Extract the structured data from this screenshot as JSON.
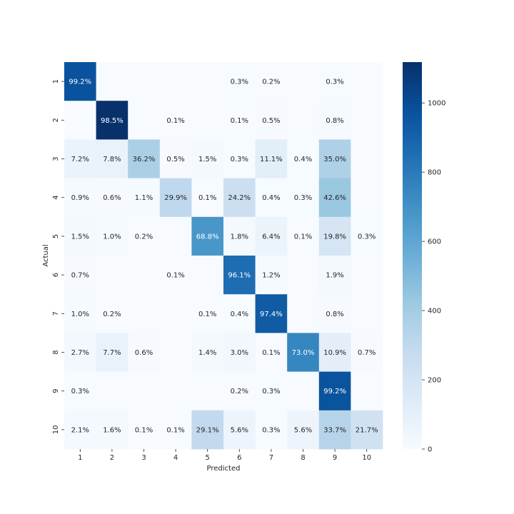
{
  "chart_data": {
    "type": "heatmap",
    "title": "",
    "xlabel": "Predicted",
    "ylabel": "Actual",
    "x_categories": [
      "1",
      "2",
      "3",
      "4",
      "5",
      "6",
      "7",
      "8",
      "9",
      "10"
    ],
    "y_categories": [
      "1",
      "2",
      "3",
      "4",
      "5",
      "6",
      "7",
      "8",
      "9",
      "10"
    ],
    "cells": [
      [
        "99.2%",
        "",
        "",
        "",
        "",
        "0.3%",
        "0.2%",
        "",
        "0.3%",
        ""
      ],
      [
        "",
        "98.5%",
        "",
        "0.1%",
        "",
        "0.1%",
        "0.5%",
        "",
        "0.8%",
        ""
      ],
      [
        "7.2%",
        "7.8%",
        "36.2%",
        "0.5%",
        "1.5%",
        "0.3%",
        "11.1%",
        "0.4%",
        "35.0%",
        ""
      ],
      [
        "0.9%",
        "0.6%",
        "1.1%",
        "29.9%",
        "0.1%",
        "24.2%",
        "0.4%",
        "0.3%",
        "42.6%",
        ""
      ],
      [
        "1.5%",
        "1.0%",
        "0.2%",
        "",
        "68.8%",
        "1.8%",
        "6.4%",
        "0.1%",
        "19.8%",
        "0.3%"
      ],
      [
        "0.7%",
        "",
        "",
        "0.1%",
        "",
        "96.1%",
        "1.2%",
        "",
        "1.9%",
        ""
      ],
      [
        "1.0%",
        "0.2%",
        "",
        "",
        "0.1%",
        "0.4%",
        "97.4%",
        "",
        "0.8%",
        ""
      ],
      [
        "2.7%",
        "7.7%",
        "0.6%",
        "",
        "1.4%",
        "3.0%",
        "0.1%",
        "73.0%",
        "10.9%",
        "0.7%"
      ],
      [
        "0.3%",
        "",
        "",
        "",
        "",
        "0.2%",
        "0.3%",
        "",
        "99.2%",
        ""
      ],
      [
        "2.1%",
        "1.6%",
        "0.1%",
        "0.1%",
        "29.1%",
        "5.6%",
        "0.3%",
        "5.6%",
        "33.7%",
        "21.7%"
      ]
    ],
    "counts": [
      [
        972,
        0,
        0,
        0,
        0,
        3,
        2,
        0,
        3,
        0
      ],
      [
        0,
        1118,
        0,
        1,
        0,
        1,
        6,
        0,
        9,
        0
      ],
      [
        74,
        80,
        374,
        5,
        15,
        3,
        115,
        4,
        362,
        0
      ],
      [
        9,
        6,
        11,
        302,
        1,
        244,
        4,
        3,
        430,
        0
      ],
      [
        15,
        10,
        2,
        0,
        676,
        18,
        63,
        1,
        194,
        3
      ],
      [
        6,
        0,
        0,
        1,
        0,
        857,
        11,
        0,
        17,
        0
      ],
      [
        10,
        2,
        0,
        0,
        1,
        4,
        933,
        0,
        8,
        0
      ],
      [
        28,
        79,
        6,
        0,
        14,
        31,
        1,
        750,
        112,
        7
      ],
      [
        3,
        0,
        0,
        0,
        0,
        2,
        3,
        0,
        966,
        0
      ],
      [
        21,
        16,
        1,
        1,
        294,
        57,
        3,
        57,
        340,
        219
      ]
    ],
    "colorbar": {
      "min": 0,
      "max": 1118,
      "ticks": [
        0,
        200,
        400,
        600,
        800,
        1000
      ]
    },
    "colormap": "Blues",
    "grid": false
  }
}
